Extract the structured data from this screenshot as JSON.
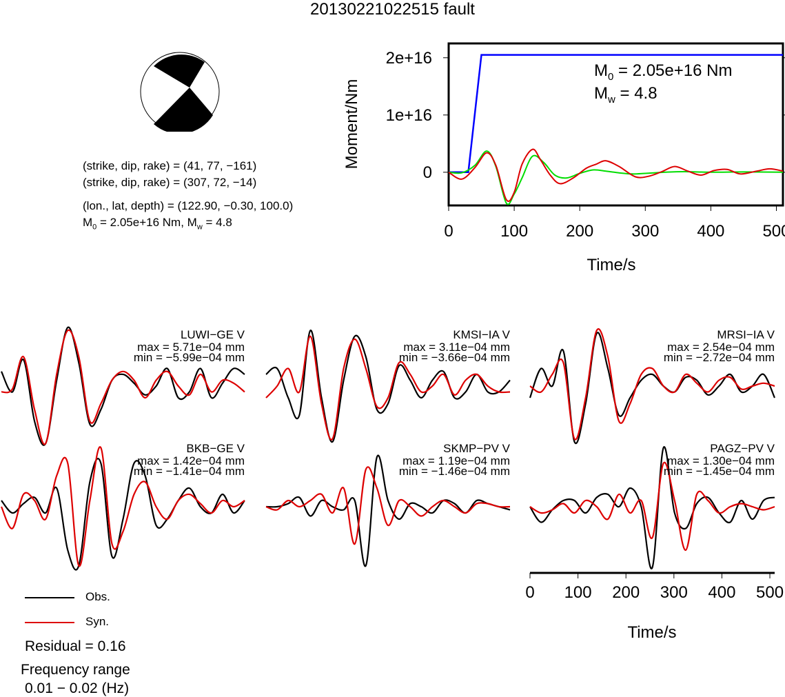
{
  "title": "20130221022515 fault",
  "mechanism": {
    "line1": "(strike, dip, rake) = (41, 77, −161)",
    "line2": "(strike, dip, rake) = (307, 72, −14)",
    "line3": "(lon., lat, depth) = (122.90, −0.30, 100.0)",
    "m0_prefix": "M",
    "m0_sub": "0",
    "m0_rest": " = 2.05e+16 Nm, M",
    "mw_sub": "w",
    "mw_rest": " = 4.8"
  },
  "chart_data": [
    {
      "type": "line",
      "title": "",
      "xlabel": "Time/s",
      "ylabel": "Moment/Nm",
      "xlim": [
        0,
        510
      ],
      "ylim": [
        -5800000000000000.0,
        2.25e+16
      ],
      "xticks": [
        "0",
        "100",
        "200",
        "300",
        "400",
        "500"
      ],
      "yticks": [
        "0",
        "1e+16",
        "2e+16"
      ],
      "annotation": {
        "m0_prefix": "M",
        "m0_sub": "0",
        "m0_rest": " = 2.05e+16 Nm",
        "mw_prefix": "M",
        "mw_sub": "w",
        "mw_rest": " = 4.8"
      },
      "series": [
        {
          "color": "#0000ff",
          "x": [
            0,
            30,
            50,
            510
          ],
          "y": [
            0,
            0,
            2.05e+16,
            2.05e+16
          ]
        },
        {
          "color": "#00dd00",
          "x": [
            0,
            20,
            40,
            58,
            72,
            88,
            100,
            112,
            128,
            145,
            162,
            180,
            200,
            220,
            240,
            260,
            280,
            300,
            330,
            360,
            400,
            450,
            510
          ],
          "y": [
            0,
            -100000000000000.0,
            1200000000000000.0,
            3700000000000000.0,
            1000000000000000.0,
            -5400000000000000.0,
            -3800000000000000.0,
            -1000000000000000.0,
            2800000000000000.0,
            1700000000000000.0,
            -500000000000000.0,
            -1000000000000000.0,
            -200000000000000.0,
            400000000000000.0,
            200000000000000.0,
            -100000000000000.0,
            -300000000000000.0,
            -200000000000000.0,
            0,
            100000000000000.0,
            0,
            50000000000000.0,
            0
          ]
        },
        {
          "color": "#dd0000",
          "x": [
            0,
            20,
            40,
            58,
            72,
            88,
            100,
            112,
            128,
            140,
            155,
            170,
            190,
            210,
            225,
            240,
            260,
            285,
            305,
            325,
            345,
            365,
            385,
            405,
            425,
            445,
            470,
            490,
            510
          ],
          "y": [
            0,
            -1200000000000000.0,
            800000000000000.0,
            3400000000000000.0,
            1200000000000000.0,
            -4800000000000000.0,
            -3500000000000000.0,
            1400000000000000.0,
            4000000000000000.0,
            2200000000000000.0,
            -500000000000000.0,
            -2000000000000000.0,
            -1000000000000000.0,
            700000000000000.0,
            1400000000000000.0,
            2000000000000000.0,
            1000000000000000.0,
            -800000000000000.0,
            -700000000000000.0,
            100000000000000.0,
            1000000000000000.0,
            200000000000000.0,
            -500000000000000.0,
            300000000000000.0,
            500000000000000.0,
            -300000000000000.0,
            200000000000000.0,
            600000000000000.0,
            200000000000000.0
          ]
        }
      ]
    },
    {
      "type": "line",
      "title": "",
      "xlabel": "Time/s",
      "ylabel": "",
      "xlim": [
        0,
        510
      ],
      "xticks": [
        "0",
        "100",
        "200",
        "300",
        "400",
        "500"
      ],
      "waveforms": [
        {
          "station": "LUWI−GE V",
          "max": "max = 5.71e−04 mm",
          "min": "min = −5.99e−04 mm",
          "obs": [
            0.25,
            -0.1,
            0.45,
            -0.6,
            -0.98,
            0.1,
            1.0,
            0.4,
            -0.65,
            -0.4,
            0.1,
            0.2,
            0.05,
            -0.15,
            0.0,
            0.3,
            -0.2,
            -0.1,
            0.3,
            -0.2,
            0.05,
            0.3,
            0.2
          ],
          "syn": [
            -0.1,
            -0.05,
            0.5,
            -0.4,
            -0.98,
            0.2,
            0.95,
            0.5,
            -0.6,
            -0.3,
            0.1,
            0.25,
            0.1,
            -0.2,
            0.1,
            0.25,
            0.0,
            -0.15,
            0.2,
            -0.1,
            0.1,
            0.05,
            -0.1
          ]
        },
        {
          "station": "KMSI−IA V",
          "max": "max = 3.11e−04 mm",
          "min": "min = −3.66e−04 mm",
          "obs": [
            0.2,
            0.3,
            -0.2,
            -0.5,
            0.95,
            -0.2,
            -0.95,
            0.1,
            0.85,
            0.5,
            -0.4,
            -0.3,
            0.35,
            0.1,
            -0.2,
            0.1,
            0.25,
            -0.2,
            -0.1,
            0.2,
            -0.1,
            -0.1,
            0.1
          ],
          "syn": [
            -0.2,
            0.0,
            0.3,
            -0.1,
            0.85,
            -0.3,
            -0.9,
            0.3,
            0.8,
            0.3,
            -0.35,
            -0.2,
            0.4,
            0.2,
            -0.1,
            0.0,
            0.2,
            -0.15,
            0.1,
            0.2,
            0.0,
            -0.1,
            -0.1
          ]
        },
        {
          "station": "MRSI−IA V",
          "max": "max = 2.54e−04 mm",
          "min": "min = −2.72e−04 mm",
          "obs": [
            -0.2,
            0.3,
            0.0,
            0.6,
            -0.95,
            -0.3,
            0.9,
            0.3,
            -0.5,
            -0.2,
            0.1,
            0.2,
            0.0,
            -0.1,
            0.15,
            0.1,
            -0.15,
            0.0,
            0.2,
            -0.1,
            0.0,
            0.2,
            -0.2
          ],
          "syn": [
            0.0,
            -0.1,
            0.2,
            0.4,
            -0.9,
            -0.2,
            0.95,
            0.5,
            -0.6,
            -0.3,
            0.2,
            0.3,
            0.0,
            -0.1,
            0.2,
            0.05,
            -0.1,
            0.1,
            0.15,
            -0.05,
            0.0,
            0.05,
            0.0
          ]
        },
        {
          "station": "BKB−GE V",
          "max": "max = 1.42e−04 mm",
          "min": "min = −1.41e−04 mm",
          "obs": [
            0.1,
            -0.1,
            0.05,
            0.15,
            -0.1,
            0.3,
            -0.7,
            -0.95,
            0.4,
            0.7,
            -0.8,
            -0.2,
            0.7,
            0.5,
            -0.3,
            -0.2,
            0.1,
            0.3,
            0.0,
            -0.1,
            0.2,
            -0.1,
            0.1
          ],
          "syn": [
            0.0,
            -0.35,
            0.2,
            0.1,
            -0.2,
            0.5,
            0.7,
            -0.95,
            0.1,
            0.95,
            -0.6,
            -0.4,
            0.2,
            0.4,
            0.0,
            -0.2,
            0.1,
            0.2,
            0.05,
            -0.1,
            0.1,
            0.0,
            0.1
          ]
        },
        {
          "station": "SKMP−PV V",
          "max": "max = 1.19e−04 mm",
          "min": "min = −1.46e−04 mm",
          "obs": [
            0.0,
            0.0,
            0.05,
            0.15,
            -0.15,
            0.1,
            0.0,
            -0.05,
            0.1,
            -0.95,
            0.8,
            0.1,
            -0.2,
            0.05,
            0.0,
            -0.1,
            0.1,
            0.05,
            -0.1,
            0.1,
            0.05,
            0.0,
            -0.05
          ],
          "syn": [
            0.0,
            -0.05,
            0.1,
            0.0,
            0.1,
            0.2,
            -0.1,
            0.3,
            -0.6,
            0.6,
            0.3,
            -0.3,
            0.1,
            0.0,
            -0.15,
            0.0,
            0.1,
            0.0,
            -0.1,
            0.05,
            0.05,
            0.0,
            0.0
          ]
        },
        {
          "station": "PAGZ−PV V",
          "max": "max = 1.30e−04 mm",
          "min": "min = −1.45e−04 mm",
          "obs": [
            0.0,
            -0.25,
            -0.05,
            0.1,
            0.1,
            -0.1,
            0.15,
            0.2,
            0.0,
            0.3,
            0.0,
            -0.98,
            0.95,
            -0.1,
            -0.35,
            0.05,
            0.15,
            -0.1,
            -0.25,
            0.1,
            -0.2,
            0.1,
            0.15
          ],
          "syn": [
            0.0,
            -0.1,
            -0.05,
            0.05,
            -0.1,
            0.1,
            0.0,
            -0.2,
            0.2,
            -0.1,
            0.1,
            -0.5,
            0.7,
            0.1,
            -0.7,
            0.2,
            0.1,
            -0.1,
            0.0,
            0.05,
            0.0,
            -0.05,
            0.0
          ]
        }
      ]
    }
  ],
  "legend": {
    "obs": "Obs.",
    "syn": "Syn.",
    "obs_color": "#000000",
    "syn_color": "#dd0000"
  },
  "residual": "Residual = 0.16",
  "freq_label": "Frequency range",
  "freq_value": "0.01 − 0.02 (Hz)"
}
